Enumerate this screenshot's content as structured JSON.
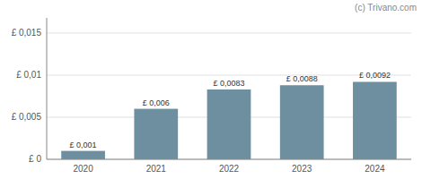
{
  "chart_data": {
    "type": "bar",
    "categories": [
      "2020",
      "2021",
      "2022",
      "2023",
      "2024"
    ],
    "values": [
      0.001,
      0.006,
      0.0083,
      0.0088,
      0.0092
    ],
    "value_labels": [
      "£ 0,001",
      "£ 0,006",
      "£ 0,0083",
      "£ 0,0088",
      "£ 0,0092"
    ],
    "color": "#6e8fa0",
    "ylim": [
      0,
      0.0168
    ],
    "yticks": [
      {
        "value": 0,
        "label": "£ 0"
      },
      {
        "value": 0.005,
        "label": "£ 0,005"
      },
      {
        "value": 0.01,
        "label": "£ 0,01"
      },
      {
        "value": 0.015,
        "label": "£ 0,015"
      }
    ],
    "grid": true,
    "data_labels": true,
    "annotations": [
      "(c) Trivano.com"
    ]
  }
}
